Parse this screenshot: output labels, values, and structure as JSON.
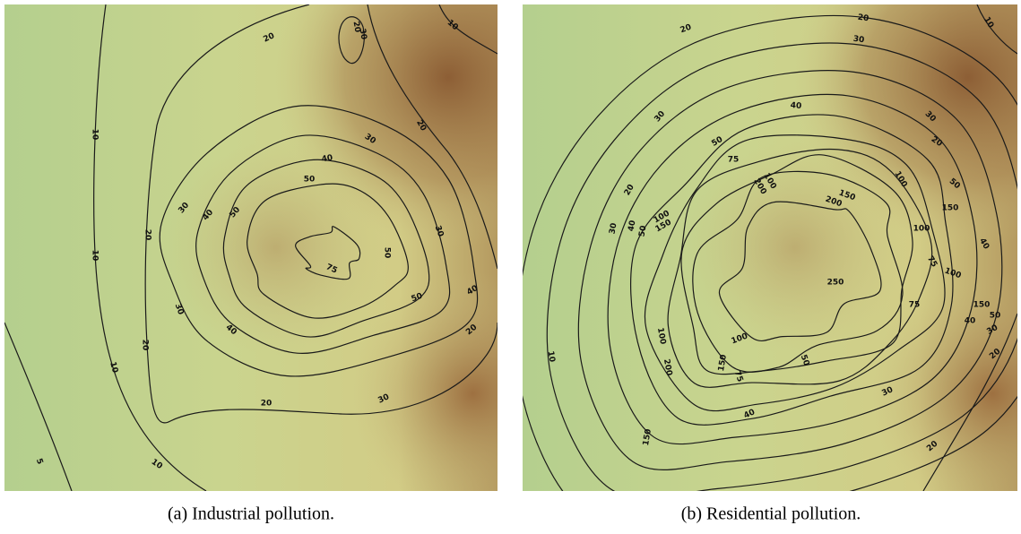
{
  "panels": [
    {
      "caption": "(a) Industrial pollution.",
      "contour_labels": [
        "10",
        "10",
        "10",
        "10",
        "5",
        "20",
        "30",
        "10",
        "20",
        "20",
        "20",
        "30",
        "30",
        "30",
        "30",
        "20",
        "20",
        "20",
        "30",
        "40",
        "40",
        "40",
        "40",
        "50",
        "50",
        "50",
        "50",
        "75"
      ]
    },
    {
      "caption": "(b) Residential pollution.",
      "contour_labels": [
        "20",
        "10",
        "30",
        "20",
        "30",
        "40",
        "50",
        "20",
        "30",
        "40",
        "50",
        "75",
        "100",
        "200",
        "150",
        "200",
        "150",
        "100",
        "100",
        "75",
        "100",
        "150",
        "250",
        "100",
        "75",
        "150",
        "50",
        "40",
        "30",
        "20",
        "50",
        "40",
        "30",
        "20",
        "150",
        "200",
        "100",
        "75",
        "50",
        "100",
        "150",
        "40",
        "30",
        "20",
        "10"
      ]
    }
  ]
}
